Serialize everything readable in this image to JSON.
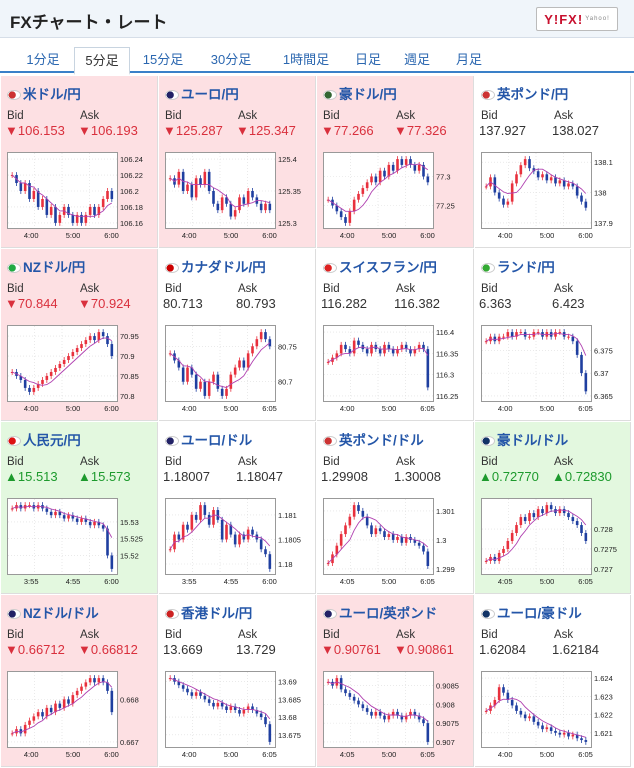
{
  "header": {
    "title": "FXチャート・レート",
    "logo": "Y!FX!",
    "logo_sub": "Yahoo!"
  },
  "tabs": [
    "1分足",
    "5分足",
    "15分足",
    "30分足",
    "1時間足",
    "日足",
    "週足",
    "月足"
  ],
  "active_tab": 1,
  "labels": {
    "bid": "Bid",
    "ask": "Ask"
  },
  "colors": {
    "down_bg": "#fde0e3",
    "up_bg": "#e3f8df",
    "candle_up": "#e8303d",
    "candle_down": "#1f3fa0",
    "ma": "#b040b0"
  },
  "pairs": [
    {
      "name": "米ドル/円",
      "bid": "▼106.153",
      "ask": "▼106.193",
      "trend": "down",
      "yticks": [
        "106.24",
        "106.22",
        "106.2",
        "106.18",
        "106.16"
      ],
      "xticks": [
        "4:00",
        "5:00",
        "6:00"
      ],
      "series": [
        106.22,
        106.21,
        106.2,
        106.21,
        106.19,
        106.2,
        106.18,
        106.19,
        106.17,
        106.18,
        106.16,
        106.17,
        106.18,
        106.17,
        106.16,
        106.17,
        106.16,
        106.17,
        106.18,
        106.17,
        106.18,
        106.19,
        106.2,
        106.19
      ]
    },
    {
      "name": "ユーロ/円",
      "bid": "▼125.287",
      "ask": "▼125.347",
      "trend": "down",
      "yticks": [
        "125.4",
        "125.35",
        "125.3"
      ],
      "xticks": [
        "4:00",
        "5:00",
        "6:00"
      ],
      "series": [
        125.37,
        125.36,
        125.38,
        125.35,
        125.36,
        125.34,
        125.37,
        125.36,
        125.38,
        125.35,
        125.33,
        125.32,
        125.34,
        125.33,
        125.31,
        125.32,
        125.34,
        125.33,
        125.35,
        125.34,
        125.33,
        125.32,
        125.33,
        125.32
      ]
    },
    {
      "name": "豪ドル/円",
      "bid": "▼77.266",
      "ask": "▼77.326",
      "trend": "down",
      "yticks": [
        "77.3",
        "77.25"
      ],
      "xticks": [
        "4:00",
        "5:00",
        "6:00"
      ],
      "series": [
        77.26,
        77.25,
        77.24,
        77.23,
        77.22,
        77.24,
        77.26,
        77.27,
        77.28,
        77.29,
        77.3,
        77.29,
        77.31,
        77.3,
        77.32,
        77.31,
        77.33,
        77.32,
        77.33,
        77.32,
        77.31,
        77.32,
        77.3,
        77.29
      ]
    },
    {
      "name": "英ポンド/円",
      "bid": "137.927",
      "ask": "138.027",
      "trend": "flat",
      "yticks": [
        "138.1",
        "138",
        "137.9"
      ],
      "xticks": [
        "4:00",
        "5:00",
        "6:00"
      ],
      "series": [
        138.02,
        138.05,
        138.0,
        137.98,
        137.96,
        137.97,
        138.03,
        138.06,
        138.09,
        138.11,
        138.08,
        138.07,
        138.05,
        138.06,
        138.04,
        138.05,
        138.03,
        138.04,
        138.02,
        138.03,
        138.02,
        137.99,
        137.97,
        137.95
      ]
    },
    {
      "name": "NZドル/円",
      "bid": "▼70.844",
      "ask": "▼70.924",
      "trend": "down",
      "yticks": [
        "70.95",
        "70.9",
        "70.85",
        "70.8"
      ],
      "xticks": [
        "4:00",
        "5:00",
        "6:00"
      ],
      "series": [
        70.86,
        70.85,
        70.84,
        70.82,
        70.81,
        70.82,
        70.83,
        70.84,
        70.85,
        70.86,
        70.87,
        70.88,
        70.89,
        70.9,
        70.91,
        70.92,
        70.93,
        70.94,
        70.95,
        70.94,
        70.96,
        70.95,
        70.93,
        70.9
      ]
    },
    {
      "name": "カナダドル/円",
      "bid": "80.713",
      "ask": "80.793",
      "trend": "flat",
      "yticks": [
        "80.75",
        "80.7"
      ],
      "xticks": [
        "4:00",
        "5:00",
        "6:05"
      ],
      "series": [
        80.74,
        80.73,
        80.72,
        80.7,
        80.72,
        80.71,
        80.69,
        80.7,
        80.68,
        80.7,
        80.71,
        80.69,
        80.68,
        80.69,
        80.71,
        80.72,
        80.73,
        80.72,
        80.74,
        80.75,
        80.76,
        80.77,
        80.76,
        80.75
      ]
    },
    {
      "name": "スイスフラン/円",
      "bid": "116.282",
      "ask": "116.382",
      "trend": "flat",
      "yticks": [
        "116.4",
        "116.35",
        "116.3",
        "116.25"
      ],
      "xticks": [
        "4:00",
        "5:00",
        "6:05"
      ],
      "series": [
        116.33,
        116.34,
        116.35,
        116.37,
        116.36,
        116.35,
        116.38,
        116.37,
        116.36,
        116.35,
        116.37,
        116.36,
        116.35,
        116.37,
        116.36,
        116.35,
        116.36,
        116.37,
        116.36,
        116.35,
        116.36,
        116.37,
        116.36,
        116.27
      ]
    },
    {
      "name": "ランド/円",
      "bid": "6.363",
      "ask": "6.423",
      "trend": "flat",
      "yticks": [
        "6.375",
        "6.37",
        "6.365"
      ],
      "xticks": [
        "4:00",
        "5:00",
        "6:05"
      ],
      "series": [
        6.377,
        6.378,
        6.377,
        6.378,
        6.378,
        6.379,
        6.378,
        6.379,
        6.379,
        6.378,
        6.378,
        6.379,
        6.379,
        6.378,
        6.379,
        6.378,
        6.379,
        6.379,
        6.378,
        6.378,
        6.377,
        6.374,
        6.37,
        6.366
      ]
    },
    {
      "name": "人民元/円",
      "bid": "▲15.513",
      "ask": "▲15.573",
      "trend": "up",
      "yticks": [
        "15.53",
        "15.525",
        "15.52"
      ],
      "xticks": [
        "3:55",
        "4:55",
        "6:00"
      ],
      "series": [
        15.534,
        15.535,
        15.534,
        15.535,
        15.535,
        15.534,
        15.535,
        15.534,
        15.533,
        15.532,
        15.533,
        15.532,
        15.531,
        15.532,
        15.531,
        15.53,
        15.531,
        15.53,
        15.529,
        15.53,
        15.529,
        15.528,
        15.52,
        15.516
      ]
    },
    {
      "name": "ユーロ/ドル",
      "bid": "1.18007",
      "ask": "1.18047",
      "trend": "flat",
      "yticks": [
        "1.181",
        "1.1805",
        "1.18"
      ],
      "xticks": [
        "3:55",
        "4:55",
        "6:00"
      ],
      "series": [
        1.1803,
        1.1806,
        1.1805,
        1.1808,
        1.1807,
        1.181,
        1.1809,
        1.1812,
        1.181,
        1.1808,
        1.1811,
        1.1809,
        1.1805,
        1.1808,
        1.1806,
        1.1804,
        1.1806,
        1.1805,
        1.1807,
        1.1806,
        1.1805,
        1.1803,
        1.1802,
        1.1799
      ]
    },
    {
      "name": "英ポンド/ドル",
      "bid": "1.29908",
      "ask": "1.30008",
      "trend": "flat",
      "yticks": [
        "1.301",
        "1.3",
        "1.299"
      ],
      "xticks": [
        "4:05",
        "5:00",
        "6:05"
      ],
      "series": [
        1.2992,
        1.2995,
        1.2998,
        1.3002,
        1.3005,
        1.3008,
        1.3012,
        1.301,
        1.3008,
        1.3005,
        1.3002,
        1.3004,
        1.3003,
        1.3001,
        1.3002,
        1.3,
        1.3001,
        1.2999,
        1.3001,
        1.3,
        1.2999,
        1.2998,
        1.2996,
        1.2991
      ]
    },
    {
      "name": "豪ドル/ドル",
      "bid": "▲0.72770",
      "ask": "▲0.72830",
      "trend": "up",
      "yticks": [
        "0.728",
        "0.7275",
        "0.727"
      ],
      "xticks": [
        "4:05",
        "5:00",
        "6:05"
      ],
      "series": [
        0.7272,
        0.7273,
        0.7272,
        0.7274,
        0.7275,
        0.7277,
        0.7279,
        0.7281,
        0.7283,
        0.7282,
        0.7284,
        0.7283,
        0.7285,
        0.7284,
        0.7286,
        0.7285,
        0.7284,
        0.7285,
        0.7284,
        0.7283,
        0.7282,
        0.7281,
        0.7279,
        0.7277
      ]
    },
    {
      "name": "NZドル/ドル",
      "bid": "▼0.66712",
      "ask": "▼0.66812",
      "trend": "down",
      "yticks": [
        "0.668",
        "0.667"
      ],
      "xticks": [
        "4:00",
        "5:00",
        "6:00"
      ],
      "series": [
        0.6672,
        0.6673,
        0.6672,
        0.6674,
        0.6675,
        0.6676,
        0.6677,
        0.6676,
        0.6678,
        0.6677,
        0.6679,
        0.6678,
        0.668,
        0.6679,
        0.6681,
        0.6682,
        0.6683,
        0.6684,
        0.6685,
        0.6684,
        0.6685,
        0.6684,
        0.6682,
        0.6677
      ]
    },
    {
      "name": "香港ドル/円",
      "bid": "13.669",
      "ask": "13.729",
      "trend": "flat",
      "yticks": [
        "13.69",
        "13.685",
        "13.68",
        "13.675"
      ],
      "xticks": [
        "4:00",
        "5:00",
        "6:05"
      ],
      "series": [
        13.691,
        13.69,
        13.689,
        13.688,
        13.687,
        13.686,
        13.687,
        13.686,
        13.685,
        13.684,
        13.683,
        13.684,
        13.683,
        13.682,
        13.683,
        13.682,
        13.681,
        13.682,
        13.683,
        13.682,
        13.681,
        13.68,
        13.678,
        13.673
      ]
    },
    {
      "name": "ユーロ/英ポンド",
      "bid": "▼0.90761",
      "ask": "▼0.90861",
      "trend": "down",
      "yticks": [
        "0.9085",
        "0.908",
        "0.9075",
        "0.907"
      ],
      "xticks": [
        "4:05",
        "5:00",
        "6:05"
      ],
      "series": [
        0.9086,
        0.9085,
        0.9087,
        0.9084,
        0.9083,
        0.9082,
        0.9081,
        0.908,
        0.9079,
        0.9078,
        0.9077,
        0.9078,
        0.9077,
        0.9076,
        0.9077,
        0.9078,
        0.9077,
        0.9076,
        0.9077,
        0.9078,
        0.9077,
        0.9076,
        0.9075,
        0.907
      ]
    },
    {
      "name": "ユーロ/豪ドル",
      "bid": "1.62084",
      "ask": "1.62184",
      "trend": "flat",
      "yticks": [
        "1.624",
        "1.623",
        "1.622",
        "1.621"
      ],
      "xticks": [
        "4:00",
        "5:00",
        "6:05"
      ],
      "series": [
        1.6222,
        1.6225,
        1.6228,
        1.6235,
        1.6232,
        1.6228,
        1.6225,
        1.6222,
        1.622,
        1.6218,
        1.6219,
        1.6216,
        1.6214,
        1.6212,
        1.6213,
        1.6211,
        1.621,
        1.6209,
        1.621,
        1.6208,
        1.6209,
        1.6207,
        1.6206,
        1.6205
      ]
    }
  ]
}
